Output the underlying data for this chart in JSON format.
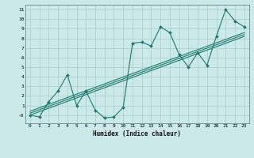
{
  "title": "",
  "xlabel": "Humidex (Indice chaleur)",
  "bg_color": "#cce9e9",
  "grid_color": "#aacccc",
  "line_color": "#1a7a6e",
  "xlim": [
    -0.5,
    23.5
  ],
  "ylim": [
    -0.85,
    11.5
  ],
  "xticks": [
    0,
    1,
    2,
    3,
    4,
    5,
    6,
    7,
    8,
    9,
    10,
    11,
    12,
    13,
    14,
    15,
    16,
    17,
    18,
    19,
    20,
    21,
    22,
    23
  ],
  "yticks": [
    0,
    1,
    2,
    3,
    4,
    5,
    6,
    7,
    8,
    9,
    10,
    11
  ],
  "ytick_labels": [
    "-0",
    "1",
    "2",
    "3",
    "4",
    "5",
    "6",
    "7",
    "8",
    "9",
    "10",
    "11"
  ],
  "main_x": [
    0,
    1,
    2,
    3,
    4,
    5,
    6,
    7,
    8,
    9,
    10,
    11,
    12,
    13,
    14,
    15,
    16,
    17,
    18,
    19,
    20,
    21,
    22,
    23
  ],
  "main_y": [
    0,
    -0.2,
    1.4,
    2.5,
    4.2,
    1.0,
    2.5,
    0.5,
    -0.3,
    -0.2,
    0.8,
    7.5,
    7.6,
    7.2,
    9.2,
    8.6,
    6.3,
    5.0,
    6.5,
    5.2,
    8.2,
    11.0,
    9.8,
    9.2
  ],
  "trend_lines": [
    {
      "x0": 0,
      "y0": 0.0,
      "x1": 23,
      "y1": 8.2
    },
    {
      "x0": 0,
      "y0": 0.2,
      "x1": 23,
      "y1": 8.4
    },
    {
      "x0": 0,
      "y0": 0.4,
      "x1": 23,
      "y1": 8.6
    }
  ]
}
